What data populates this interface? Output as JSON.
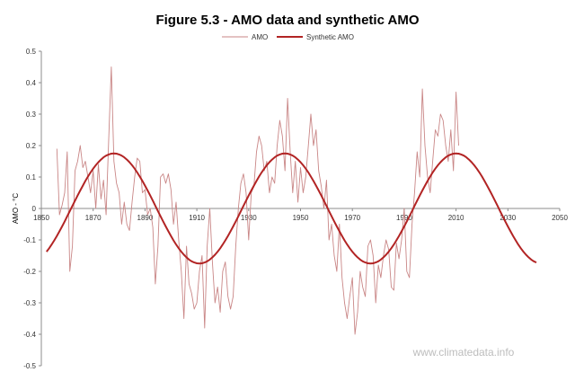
{
  "chart_data": {
    "type": "line",
    "title": "Figure 5.3 - AMO data and synthetic AMO",
    "xlabel": "",
    "ylabel": "AMO - °C",
    "xlim": [
      1850,
      2050
    ],
    "ylim": [
      -0.5,
      0.5
    ],
    "x_ticks": [
      "1850",
      "1870",
      "1890",
      "1910",
      "1930",
      "1950",
      "1970",
      "1990",
      "2010",
      "2030",
      "2050"
    ],
    "y_ticks": [
      "0.5",
      "0.4",
      "0.3",
      "0.2",
      "0.1",
      "0",
      "-0.1",
      "-0.2",
      "-0.3",
      "-0.4",
      "-0.5"
    ],
    "grid": false,
    "legend_position": "top-center",
    "colors": {
      "amo": "#c98686",
      "synthetic": "#b22424"
    },
    "series": [
      {
        "name": "AMO",
        "x": [
          1856,
          1857,
          1858,
          1859,
          1860,
          1861,
          1862,
          1863,
          1864,
          1865,
          1866,
          1867,
          1868,
          1869,
          1870,
          1871,
          1872,
          1873,
          1874,
          1875,
          1876,
          1877,
          1878,
          1879,
          1880,
          1881,
          1882,
          1883,
          1884,
          1885,
          1886,
          1887,
          1888,
          1889,
          1890,
          1891,
          1892,
          1893,
          1894,
          1895,
          1896,
          1897,
          1898,
          1899,
          1900,
          1901,
          1902,
          1903,
          1904,
          1905,
          1906,
          1907,
          1908,
          1909,
          1910,
          1911,
          1912,
          1913,
          1914,
          1915,
          1916,
          1917,
          1918,
          1919,
          1920,
          1921,
          1922,
          1923,
          1924,
          1925,
          1926,
          1927,
          1928,
          1929,
          1930,
          1931,
          1932,
          1933,
          1934,
          1935,
          1936,
          1937,
          1938,
          1939,
          1940,
          1941,
          1942,
          1943,
          1944,
          1945,
          1946,
          1947,
          1948,
          1949,
          1950,
          1951,
          1952,
          1953,
          1954,
          1955,
          1956,
          1957,
          1958,
          1959,
          1960,
          1961,
          1962,
          1963,
          1964,
          1965,
          1966,
          1967,
          1968,
          1969,
          1970,
          1971,
          1972,
          1973,
          1974,
          1975,
          1976,
          1977,
          1978,
          1979,
          1980,
          1981,
          1982,
          1983,
          1984,
          1985,
          1986,
          1987,
          1988,
          1989,
          1990,
          1991,
          1992,
          1993,
          1994,
          1995,
          1996,
          1997,
          1998,
          1999,
          2000,
          2001,
          2002,
          2003,
          2004,
          2005,
          2006,
          2007,
          2008,
          2009,
          2010,
          2011
        ],
        "values": [
          0.19,
          -0.02,
          0.01,
          0.05,
          0.18,
          -0.2,
          -0.12,
          0.12,
          0.15,
          0.2,
          0.13,
          0.15,
          0.1,
          0.05,
          0.12,
          0.0,
          0.14,
          0.03,
          0.09,
          -0.02,
          0.22,
          0.45,
          0.15,
          0.08,
          0.05,
          -0.05,
          0.02,
          -0.05,
          -0.07,
          0.02,
          0.1,
          0.16,
          0.15,
          0.05,
          0.06,
          -0.02,
          0.0,
          -0.06,
          -0.24,
          -0.12,
          0.1,
          0.11,
          0.08,
          0.11,
          0.06,
          -0.05,
          0.02,
          -0.1,
          -0.2,
          -0.35,
          -0.12,
          -0.24,
          -0.27,
          -0.32,
          -0.3,
          -0.2,
          -0.15,
          -0.38,
          -0.12,
          0.0,
          -0.17,
          -0.3,
          -0.25,
          -0.33,
          -0.2,
          -0.17,
          -0.28,
          -0.32,
          -0.28,
          -0.12,
          0.0,
          0.08,
          0.11,
          0.05,
          -0.1,
          0.05,
          0.07,
          0.18,
          0.23,
          0.2,
          0.12,
          0.15,
          0.05,
          0.1,
          0.08,
          0.2,
          0.28,
          0.23,
          0.12,
          0.35,
          0.18,
          0.05,
          0.15,
          0.02,
          0.13,
          0.05,
          0.1,
          0.2,
          0.3,
          0.2,
          0.25,
          0.12,
          0.07,
          0.0,
          0.09,
          -0.1,
          -0.05,
          -0.15,
          -0.2,
          -0.05,
          -0.22,
          -0.3,
          -0.35,
          -0.28,
          -0.22,
          -0.4,
          -0.33,
          -0.2,
          -0.25,
          -0.28,
          -0.12,
          -0.1,
          -0.15,
          -0.3,
          -0.18,
          -0.22,
          -0.15,
          -0.1,
          -0.13,
          -0.25,
          -0.26,
          -0.11,
          -0.16,
          -0.1,
          0.0,
          -0.2,
          -0.22,
          -0.05,
          0.05,
          0.18,
          0.1,
          0.38,
          0.2,
          0.1,
          0.05,
          0.15,
          0.25,
          0.23,
          0.3,
          0.28,
          0.2,
          0.15,
          0.25,
          0.12,
          0.37,
          0.2
        ]
      },
      {
        "name": "Synthetic AMO",
        "amplitude": 0.175,
        "period": 66,
        "peak_year": 1878,
        "x_range": [
          1852,
          2041
        ]
      }
    ]
  },
  "watermark": "www.climatedata.info"
}
